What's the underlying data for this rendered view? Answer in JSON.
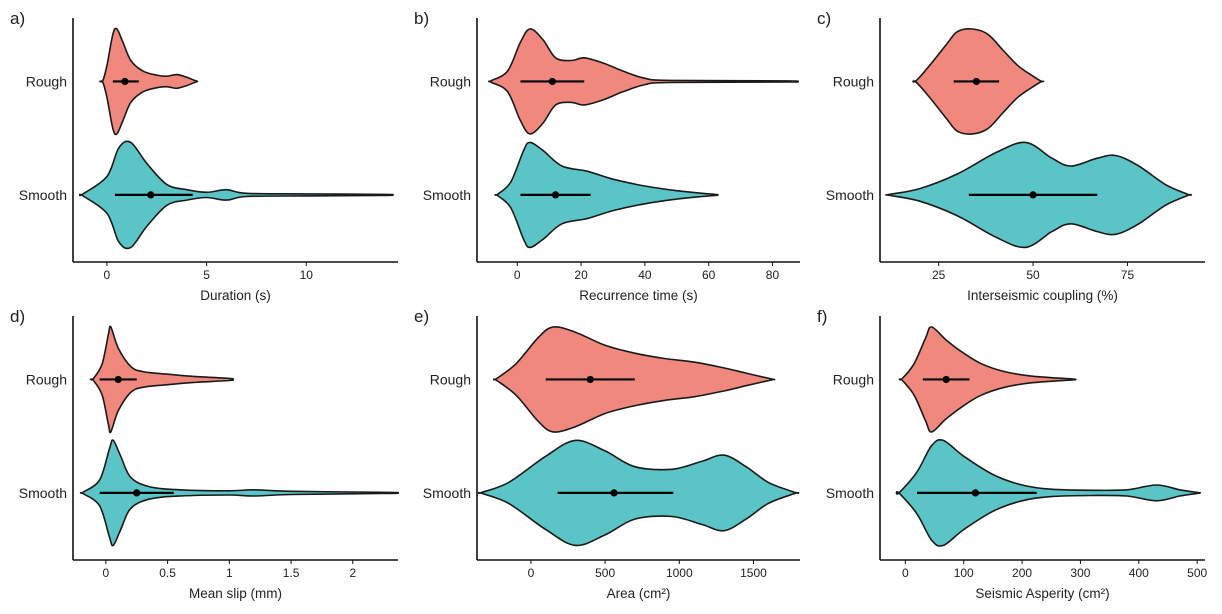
{
  "chart_data": [
    {
      "type": "violin",
      "panel_label": "a)",
      "categories": [
        "Rough",
        "Smooth"
      ],
      "xlabel": "Duration (s)",
      "xlim": [
        -1.6,
        14.5
      ],
      "xticks": [
        0,
        5,
        10
      ],
      "series": [
        {
          "name": "Rough",
          "color": "#F0887E",
          "mean": 0.9,
          "interval": [
            0.3,
            1.6
          ],
          "density": [
            [
              -0.2,
              0.02
            ],
            [
              0.0,
              0.3
            ],
            [
              0.3,
              0.9
            ],
            [
              0.5,
              1.0
            ],
            [
              0.8,
              0.75
            ],
            [
              1.2,
              0.4
            ],
            [
              1.8,
              0.2
            ],
            [
              2.5,
              0.12
            ],
            [
              3.0,
              0.1
            ],
            [
              3.5,
              0.13
            ],
            [
              4.0,
              0.08
            ],
            [
              4.4,
              0.02
            ]
          ]
        },
        {
          "name": "Smooth",
          "color": "#5BC4C6",
          "mean": 2.2,
          "interval": [
            0.4,
            4.3
          ],
          "density": [
            [
              -1.2,
              0.02
            ],
            [
              0.0,
              0.35
            ],
            [
              0.6,
              0.9
            ],
            [
              1.2,
              1.0
            ],
            [
              2.0,
              0.6
            ],
            [
              3.0,
              0.2
            ],
            [
              4.0,
              0.1
            ],
            [
              5.0,
              0.05
            ],
            [
              6.0,
              0.1
            ],
            [
              7.0,
              0.03
            ],
            [
              10.0,
              0.02
            ],
            [
              14.0,
              0.01
            ]
          ]
        }
      ]
    },
    {
      "type": "violin",
      "panel_label": "b)",
      "categories": [
        "Rough",
        "Smooth"
      ],
      "xlabel": "Recurrence time (s)",
      "xlim": [
        -12,
        88
      ],
      "xticks": [
        0,
        20,
        40,
        60,
        80
      ],
      "series": [
        {
          "name": "Rough",
          "color": "#F0887E",
          "mean": 11,
          "interval": [
            1,
            21
          ],
          "density": [
            [
              -8,
              0.02
            ],
            [
              -3,
              0.2
            ],
            [
              1,
              0.75
            ],
            [
              4,
              1.0
            ],
            [
              8,
              0.8
            ],
            [
              12,
              0.45
            ],
            [
              17,
              0.4
            ],
            [
              21,
              0.45
            ],
            [
              27,
              0.35
            ],
            [
              33,
              0.2
            ],
            [
              40,
              0.06
            ],
            [
              48,
              0.02
            ],
            [
              85,
              0.01
            ]
          ]
        },
        {
          "name": "Smooth",
          "color": "#5BC4C6",
          "mean": 12,
          "interval": [
            1,
            23
          ],
          "density": [
            [
              -6,
              0.02
            ],
            [
              -2,
              0.25
            ],
            [
              2,
              0.85
            ],
            [
              4,
              1.0
            ],
            [
              8,
              0.85
            ],
            [
              14,
              0.55
            ],
            [
              22,
              0.45
            ],
            [
              30,
              0.3
            ],
            [
              40,
              0.17
            ],
            [
              50,
              0.08
            ],
            [
              58,
              0.03
            ],
            [
              62,
              0.01
            ]
          ]
        }
      ]
    },
    {
      "type": "violin",
      "panel_label": "c)",
      "categories": [
        "Rough",
        "Smooth"
      ],
      "xlabel": "Interseismic coupling (%)",
      "xlim": [
        10,
        95
      ],
      "xticks": [
        25,
        50,
        75
      ],
      "series": [
        {
          "name": "Rough",
          "color": "#F0887E",
          "mean": 35,
          "interval": [
            29,
            41
          ],
          "density": [
            [
              19,
              0.01
            ],
            [
              22,
              0.25
            ],
            [
              27,
              0.7
            ],
            [
              30,
              0.95
            ],
            [
              34,
              1.0
            ],
            [
              38,
              0.9
            ],
            [
              42,
              0.6
            ],
            [
              46,
              0.3
            ],
            [
              50,
              0.1
            ],
            [
              52,
              0.01
            ]
          ]
        },
        {
          "name": "Smooth",
          "color": "#5BC4C6",
          "mean": 50,
          "interval": [
            33,
            67
          ],
          "density": [
            [
              12,
              0.01
            ],
            [
              20,
              0.12
            ],
            [
              30,
              0.4
            ],
            [
              40,
              0.8
            ],
            [
              48,
              1.0
            ],
            [
              55,
              0.7
            ],
            [
              60,
              0.55
            ],
            [
              67,
              0.7
            ],
            [
              72,
              0.75
            ],
            [
              78,
              0.55
            ],
            [
              85,
              0.2
            ],
            [
              91,
              0.01
            ]
          ]
        }
      ]
    },
    {
      "type": "violin",
      "panel_label": "d)",
      "categories": [
        "Rough",
        "Smooth"
      ],
      "xlabel": "Mean slip (mm)",
      "xlim": [
        -0.25,
        2.35
      ],
      "xticks": [
        0.0,
        0.5,
        1.0,
        1.5,
        2.0
      ],
      "series": [
        {
          "name": "Rough",
          "color": "#F0887E",
          "mean": 0.1,
          "interval": [
            -0.05,
            0.25
          ],
          "density": [
            [
              -0.1,
              0.02
            ],
            [
              -0.03,
              0.3
            ],
            [
              0.02,
              0.85
            ],
            [
              0.04,
              1.0
            ],
            [
              0.1,
              0.6
            ],
            [
              0.2,
              0.25
            ],
            [
              0.3,
              0.15
            ],
            [
              0.5,
              0.1
            ],
            [
              0.7,
              0.06
            ],
            [
              1.0,
              0.02
            ]
          ]
        },
        {
          "name": "Smooth",
          "color": "#5BC4C6",
          "mean": 0.25,
          "interval": [
            -0.05,
            0.55
          ],
          "density": [
            [
              -0.18,
              0.02
            ],
            [
              -0.05,
              0.25
            ],
            [
              0.03,
              0.85
            ],
            [
              0.06,
              1.0
            ],
            [
              0.12,
              0.7
            ],
            [
              0.2,
              0.3
            ],
            [
              0.35,
              0.12
            ],
            [
              0.6,
              0.06
            ],
            [
              1.0,
              0.04
            ],
            [
              1.2,
              0.06
            ],
            [
              1.5,
              0.03
            ],
            [
              2.3,
              0.01
            ]
          ]
        }
      ]
    },
    {
      "type": "violin",
      "panel_label": "e)",
      "categories": [
        "Rough",
        "Smooth"
      ],
      "xlabel": "Area (cm²)",
      "xlim": [
        -350,
        1800
      ],
      "xticks": [
        0,
        500,
        1000,
        1500
      ],
      "series": [
        {
          "name": "Rough",
          "color": "#F0887E",
          "mean": 400,
          "interval": [
            100,
            700
          ],
          "density": [
            [
              -230,
              0.02
            ],
            [
              -100,
              0.3
            ],
            [
              50,
              0.8
            ],
            [
              150,
              1.0
            ],
            [
              300,
              0.9
            ],
            [
              500,
              0.65
            ],
            [
              700,
              0.5
            ],
            [
              900,
              0.4
            ],
            [
              1100,
              0.33
            ],
            [
              1300,
              0.22
            ],
            [
              1450,
              0.12
            ],
            [
              1620,
              0.01
            ]
          ]
        },
        {
          "name": "Smooth",
          "color": "#5BC4C6",
          "mean": 560,
          "interval": [
            180,
            960
          ],
          "density": [
            [
              -330,
              0.01
            ],
            [
              -150,
              0.2
            ],
            [
              100,
              0.7
            ],
            [
              300,
              1.0
            ],
            [
              500,
              0.8
            ],
            [
              700,
              0.5
            ],
            [
              950,
              0.45
            ],
            [
              1150,
              0.6
            ],
            [
              1300,
              0.72
            ],
            [
              1450,
              0.5
            ],
            [
              1600,
              0.2
            ],
            [
              1780,
              0.01
            ]
          ]
        }
      ]
    },
    {
      "type": "violin",
      "panel_label": "f)",
      "categories": [
        "Rough",
        "Smooth"
      ],
      "xlabel": "Seismic Asperity (cm²)",
      "xlim": [
        -40,
        510
      ],
      "xticks": [
        0,
        100,
        200,
        300,
        400,
        500
      ],
      "series": [
        {
          "name": "Rough",
          "color": "#F0887E",
          "mean": 70,
          "interval": [
            30,
            110
          ],
          "density": [
            [
              -5,
              0.02
            ],
            [
              15,
              0.3
            ],
            [
              35,
              0.8
            ],
            [
              45,
              1.0
            ],
            [
              70,
              0.75
            ],
            [
              100,
              0.5
            ],
            [
              130,
              0.3
            ],
            [
              170,
              0.15
            ],
            [
              220,
              0.06
            ],
            [
              285,
              0.01
            ]
          ]
        },
        {
          "name": "Smooth",
          "color": "#5BC4C6",
          "mean": 120,
          "interval": [
            20,
            225
          ],
          "density": [
            [
              -10,
              0.01
            ],
            [
              20,
              0.4
            ],
            [
              45,
              0.9
            ],
            [
              65,
              1.0
            ],
            [
              100,
              0.7
            ],
            [
              150,
              0.35
            ],
            [
              200,
              0.15
            ],
            [
              250,
              0.07
            ],
            [
              320,
              0.05
            ],
            [
              380,
              0.06
            ],
            [
              430,
              0.15
            ],
            [
              470,
              0.06
            ],
            [
              500,
              0.01
            ]
          ]
        }
      ]
    }
  ]
}
